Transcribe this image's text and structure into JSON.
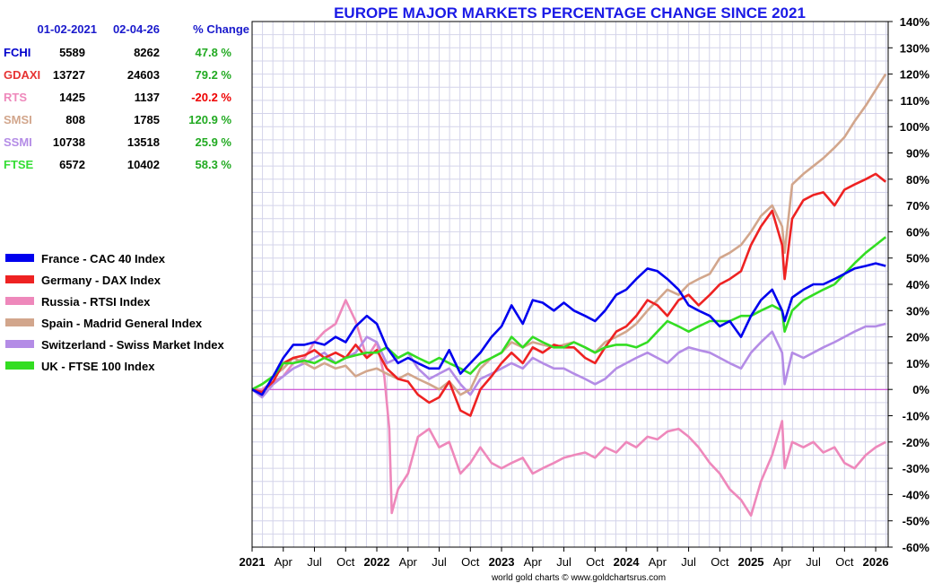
{
  "chart_data": {
    "type": "line",
    "title": "EUROPE MAJOR MARKETS PERCENTAGE CHANGE SINCE 2021",
    "credit": "world gold charts © www.goldchartsrus.com",
    "ylim": [
      -60,
      140
    ],
    "yticks": [
      -60,
      -50,
      -40,
      -30,
      -20,
      -10,
      0,
      10,
      20,
      30,
      40,
      50,
      60,
      70,
      80,
      90,
      100,
      110,
      120,
      130,
      140
    ],
    "ytick_labels": [
      "-60%",
      "-50%",
      "-40%",
      "-30%",
      "-20%",
      "-10%",
      "0%",
      "10%",
      "20%",
      "30%",
      "40%",
      "50%",
      "60%",
      "70%",
      "80%",
      "90%",
      "100%",
      "110%",
      "120%",
      "130%",
      "140%"
    ],
    "xlim": [
      2021.0,
      2026.1
    ],
    "xticks": [
      {
        "x": 2021.0,
        "label": "2021",
        "year": true
      },
      {
        "x": 2021.25,
        "label": "Apr",
        "year": false
      },
      {
        "x": 2021.5,
        "label": "Jul",
        "year": false
      },
      {
        "x": 2021.75,
        "label": "Oct",
        "year": false
      },
      {
        "x": 2022.0,
        "label": "2022",
        "year": true
      },
      {
        "x": 2022.25,
        "label": "Apr",
        "year": false
      },
      {
        "x": 2022.5,
        "label": "Jul",
        "year": false
      },
      {
        "x": 2022.75,
        "label": "Oct",
        "year": false
      },
      {
        "x": 2023.0,
        "label": "2023",
        "year": true
      },
      {
        "x": 2023.25,
        "label": "Apr",
        "year": false
      },
      {
        "x": 2023.5,
        "label": "Jul",
        "year": false
      },
      {
        "x": 2023.75,
        "label": "Oct",
        "year": false
      },
      {
        "x": 2024.0,
        "label": "2024",
        "year": true
      },
      {
        "x": 2024.25,
        "label": "Apr",
        "year": false
      },
      {
        "x": 2024.5,
        "label": "Jul",
        "year": false
      },
      {
        "x": 2024.75,
        "label": "Oct",
        "year": false
      },
      {
        "x": 2025.0,
        "label": "2025",
        "year": true
      },
      {
        "x": 2025.25,
        "label": "Apr",
        "year": false
      },
      {
        "x": 2025.5,
        "label": "Jul",
        "year": false
      },
      {
        "x": 2025.75,
        "label": "Oct",
        "year": false
      },
      {
        "x": 2026.0,
        "label": "2026",
        "year": true
      }
    ],
    "grid": true,
    "zero_line_color": "#cc33cc",
    "table": {
      "headers": [
        "",
        "01-02-2021",
        "02-04-26",
        "% Change"
      ],
      "rows": [
        {
          "name": "FCHI",
          "start": "5589",
          "end": "8262",
          "change": "47.8 %",
          "color": "#0000cc",
          "change_color": "#22aa22"
        },
        {
          "name": "GDAXI",
          "start": "13727",
          "end": "24603",
          "change": "79.2 %",
          "color": "#e63333",
          "change_color": "#22aa22"
        },
        {
          "name": "RTS",
          "start": "1425",
          "end": "1137",
          "change": "-20.2 %",
          "color": "#ee88bb",
          "change_color": "#ee0000"
        },
        {
          "name": "SMSI",
          "start": "808",
          "end": "1785",
          "change": "120.9 %",
          "color": "#d2a68c",
          "change_color": "#22aa22"
        },
        {
          "name": "SSMI",
          "start": "10738",
          "end": "13518",
          "change": "25.9 %",
          "color": "#b48ce6",
          "change_color": "#22aa22"
        },
        {
          "name": "FTSE",
          "start": "6572",
          "end": "10402",
          "change": "58.3 %",
          "color": "#33dd33",
          "change_color": "#22aa22"
        }
      ]
    },
    "legend_placement": "left",
    "series": [
      {
        "name": "France - CAC 40 Index",
        "color": "#0000ee",
        "x": [
          2021.0,
          2021.08,
          2021.17,
          2021.25,
          2021.33,
          2021.42,
          2021.5,
          2021.58,
          2021.67,
          2021.75,
          2021.83,
          2021.92,
          2022.0,
          2022.08,
          2022.17,
          2022.25,
          2022.33,
          2022.42,
          2022.5,
          2022.58,
          2022.67,
          2022.75,
          2022.83,
          2022.92,
          2023.0,
          2023.08,
          2023.17,
          2023.25,
          2023.33,
          2023.42,
          2023.5,
          2023.58,
          2023.67,
          2023.75,
          2023.83,
          2023.92,
          2024.0,
          2024.08,
          2024.17,
          2024.25,
          2024.33,
          2024.42,
          2024.5,
          2024.58,
          2024.67,
          2024.75,
          2024.83,
          2024.92,
          2025.0,
          2025.08,
          2025.17,
          2025.25,
          2025.27,
          2025.33,
          2025.42,
          2025.5,
          2025.58,
          2025.67,
          2025.75,
          2025.83,
          2025.92,
          2026.0,
          2026.08
        ],
        "y": [
          0,
          -2,
          5,
          12,
          17,
          17,
          18,
          17,
          20,
          18,
          24,
          28,
          25,
          16,
          10,
          12,
          10,
          8,
          8,
          15,
          6,
          10,
          14,
          20,
          24,
          32,
          25,
          34,
          33,
          30,
          33,
          30,
          28,
          26,
          30,
          36,
          38,
          42,
          46,
          45,
          42,
          38,
          32,
          30,
          28,
          24,
          26,
          20,
          28,
          34,
          38,
          30,
          26,
          35,
          38,
          40,
          40,
          42,
          44,
          46,
          47,
          48,
          47
        ]
      },
      {
        "name": "Germany - DAX Index",
        "color": "#ee2222",
        "x": [
          2021.0,
          2021.08,
          2021.17,
          2021.25,
          2021.33,
          2021.42,
          2021.5,
          2021.58,
          2021.67,
          2021.75,
          2021.83,
          2021.92,
          2022.0,
          2022.08,
          2022.17,
          2022.25,
          2022.33,
          2022.42,
          2022.5,
          2022.58,
          2022.67,
          2022.75,
          2022.83,
          2022.92,
          2023.0,
          2023.08,
          2023.17,
          2023.25,
          2023.33,
          2023.42,
          2023.5,
          2023.58,
          2023.67,
          2023.75,
          2023.83,
          2023.92,
          2024.0,
          2024.08,
          2024.17,
          2024.25,
          2024.33,
          2024.42,
          2024.5,
          2024.58,
          2024.67,
          2024.75,
          2024.83,
          2024.92,
          2025.0,
          2025.08,
          2025.17,
          2025.25,
          2025.27,
          2025.33,
          2025.42,
          2025.5,
          2025.58,
          2025.67,
          2025.75,
          2025.83,
          2025.92,
          2026.0,
          2026.08
        ],
        "y": [
          0,
          -1,
          3,
          10,
          12,
          13,
          15,
          12,
          14,
          12,
          17,
          12,
          15,
          8,
          4,
          3,
          -2,
          -5,
          -3,
          3,
          -8,
          -10,
          0,
          5,
          10,
          14,
          10,
          16,
          14,
          17,
          16,
          16,
          12,
          10,
          16,
          22,
          24,
          28,
          34,
          32,
          28,
          34,
          36,
          32,
          36,
          40,
          42,
          45,
          55,
          62,
          68,
          55,
          42,
          65,
          72,
          74,
          75,
          70,
          76,
          78,
          80,
          82,
          79
        ]
      },
      {
        "name": "Russia - RTSI Index",
        "color": "#ee88bb",
        "x": [
          2021.0,
          2021.08,
          2021.17,
          2021.25,
          2021.33,
          2021.42,
          2021.5,
          2021.58,
          2021.67,
          2021.75,
          2021.83,
          2021.92,
          2022.0,
          2022.06,
          2022.1,
          2022.12,
          2022.17,
          2022.25,
          2022.33,
          2022.42,
          2022.5,
          2022.58,
          2022.67,
          2022.75,
          2022.83,
          2022.92,
          2023.0,
          2023.08,
          2023.17,
          2023.25,
          2023.33,
          2023.42,
          2023.5,
          2023.58,
          2023.67,
          2023.75,
          2023.83,
          2023.92,
          2024.0,
          2024.08,
          2024.17,
          2024.25,
          2024.33,
          2024.42,
          2024.5,
          2024.58,
          2024.67,
          2024.75,
          2024.83,
          2024.92,
          2025.0,
          2025.08,
          2025.17,
          2025.25,
          2025.27,
          2025.33,
          2025.42,
          2025.5,
          2025.58,
          2025.67,
          2025.75,
          2025.83,
          2025.92,
          2026.0,
          2026.08
        ],
        "y": [
          0,
          0,
          3,
          5,
          10,
          12,
          18,
          22,
          25,
          34,
          26,
          12,
          18,
          5,
          -15,
          -47,
          -38,
          -32,
          -18,
          -15,
          -22,
          -20,
          -32,
          -28,
          -22,
          -28,
          -30,
          -28,
          -26,
          -32,
          -30,
          -28,
          -26,
          -25,
          -24,
          -26,
          -22,
          -24,
          -20,
          -22,
          -18,
          -19,
          -16,
          -15,
          -18,
          -22,
          -28,
          -32,
          -38,
          -42,
          -48,
          -35,
          -25,
          -12,
          -30,
          -20,
          -22,
          -20,
          -24,
          -22,
          -28,
          -30,
          -25,
          -22,
          -20
        ]
      },
      {
        "name": "Spain - Madrid General Index",
        "color": "#d2a68c",
        "x": [
          2021.0,
          2021.08,
          2021.17,
          2021.25,
          2021.33,
          2021.42,
          2021.5,
          2021.58,
          2021.67,
          2021.75,
          2021.83,
          2021.92,
          2022.0,
          2022.08,
          2022.17,
          2022.25,
          2022.33,
          2022.42,
          2022.5,
          2022.58,
          2022.67,
          2022.75,
          2022.83,
          2022.92,
          2023.0,
          2023.08,
          2023.17,
          2023.25,
          2023.33,
          2023.42,
          2023.5,
          2023.58,
          2023.67,
          2023.75,
          2023.83,
          2023.92,
          2024.0,
          2024.08,
          2024.17,
          2024.25,
          2024.33,
          2024.42,
          2024.5,
          2024.58,
          2024.67,
          2024.75,
          2024.83,
          2024.92,
          2025.0,
          2025.08,
          2025.17,
          2025.25,
          2025.27,
          2025.33,
          2025.42,
          2025.5,
          2025.58,
          2025.67,
          2025.75,
          2025.83,
          2025.92,
          2026.0,
          2026.08
        ],
        "y": [
          0,
          2,
          5,
          8,
          12,
          10,
          8,
          10,
          8,
          9,
          5,
          7,
          8,
          6,
          4,
          6,
          4,
          2,
          0,
          3,
          -2,
          0,
          8,
          12,
          14,
          18,
          16,
          18,
          17,
          16,
          17,
          18,
          16,
          14,
          18,
          20,
          22,
          25,
          30,
          34,
          38,
          36,
          40,
          42,
          44,
          50,
          52,
          55,
          60,
          66,
          70,
          62,
          52,
          78,
          82,
          85,
          88,
          92,
          96,
          102,
          108,
          114,
          120
        ]
      },
      {
        "name": "Switzerland - Swiss Market Index",
        "color": "#b48ce6",
        "x": [
          2021.0,
          2021.08,
          2021.17,
          2021.25,
          2021.33,
          2021.42,
          2021.5,
          2021.58,
          2021.67,
          2021.75,
          2021.83,
          2021.92,
          2022.0,
          2022.08,
          2022.17,
          2022.25,
          2022.33,
          2022.42,
          2022.5,
          2022.58,
          2022.67,
          2022.75,
          2022.83,
          2022.92,
          2023.0,
          2023.08,
          2023.17,
          2023.25,
          2023.33,
          2023.42,
          2023.5,
          2023.58,
          2023.67,
          2023.75,
          2023.83,
          2023.92,
          2024.0,
          2024.08,
          2024.17,
          2024.25,
          2024.33,
          2024.42,
          2024.5,
          2024.58,
          2024.67,
          2024.75,
          2024.83,
          2024.92,
          2025.0,
          2025.08,
          2025.17,
          2025.25,
          2025.27,
          2025.33,
          2025.42,
          2025.5,
          2025.58,
          2025.67,
          2025.75,
          2025.83,
          2025.92,
          2026.0,
          2026.08
        ],
        "y": [
          0,
          -3,
          2,
          5,
          8,
          10,
          12,
          14,
          10,
          12,
          14,
          20,
          18,
          10,
          12,
          14,
          8,
          4,
          6,
          8,
          2,
          -2,
          4,
          6,
          8,
          10,
          8,
          12,
          10,
          8,
          8,
          6,
          4,
          2,
          4,
          8,
          10,
          12,
          14,
          12,
          10,
          14,
          16,
          15,
          14,
          12,
          10,
          8,
          14,
          18,
          22,
          14,
          2,
          14,
          12,
          14,
          16,
          18,
          20,
          22,
          24,
          24,
          25
        ]
      },
      {
        "name": "UK - FTSE 100 Index",
        "color": "#33dd22",
        "x": [
          2021.0,
          2021.08,
          2021.17,
          2021.25,
          2021.33,
          2021.42,
          2021.5,
          2021.58,
          2021.67,
          2021.75,
          2021.83,
          2021.92,
          2022.0,
          2022.08,
          2022.17,
          2022.25,
          2022.33,
          2022.42,
          2022.5,
          2022.58,
          2022.67,
          2022.75,
          2022.83,
          2022.92,
          2023.0,
          2023.08,
          2023.17,
          2023.25,
          2023.33,
          2023.42,
          2023.5,
          2023.58,
          2023.67,
          2023.75,
          2023.83,
          2023.92,
          2024.0,
          2024.08,
          2024.17,
          2024.25,
          2024.33,
          2024.42,
          2024.5,
          2024.58,
          2024.67,
          2024.75,
          2024.83,
          2024.92,
          2025.0,
          2025.08,
          2025.17,
          2025.25,
          2025.27,
          2025.33,
          2025.42,
          2025.5,
          2025.58,
          2025.67,
          2025.75,
          2025.83,
          2025.92,
          2026.0,
          2026.08
        ],
        "y": [
          0,
          2,
          5,
          10,
          10,
          11,
          10,
          12,
          10,
          12,
          13,
          14,
          14,
          16,
          12,
          14,
          12,
          10,
          12,
          10,
          8,
          6,
          10,
          12,
          14,
          20,
          16,
          20,
          18,
          16,
          16,
          18,
          16,
          14,
          16,
          17,
          17,
          16,
          18,
          22,
          26,
          24,
          22,
          24,
          26,
          26,
          26,
          28,
          28,
          30,
          32,
          30,
          22,
          30,
          34,
          36,
          38,
          40,
          44,
          48,
          52,
          55,
          58
        ]
      }
    ]
  }
}
